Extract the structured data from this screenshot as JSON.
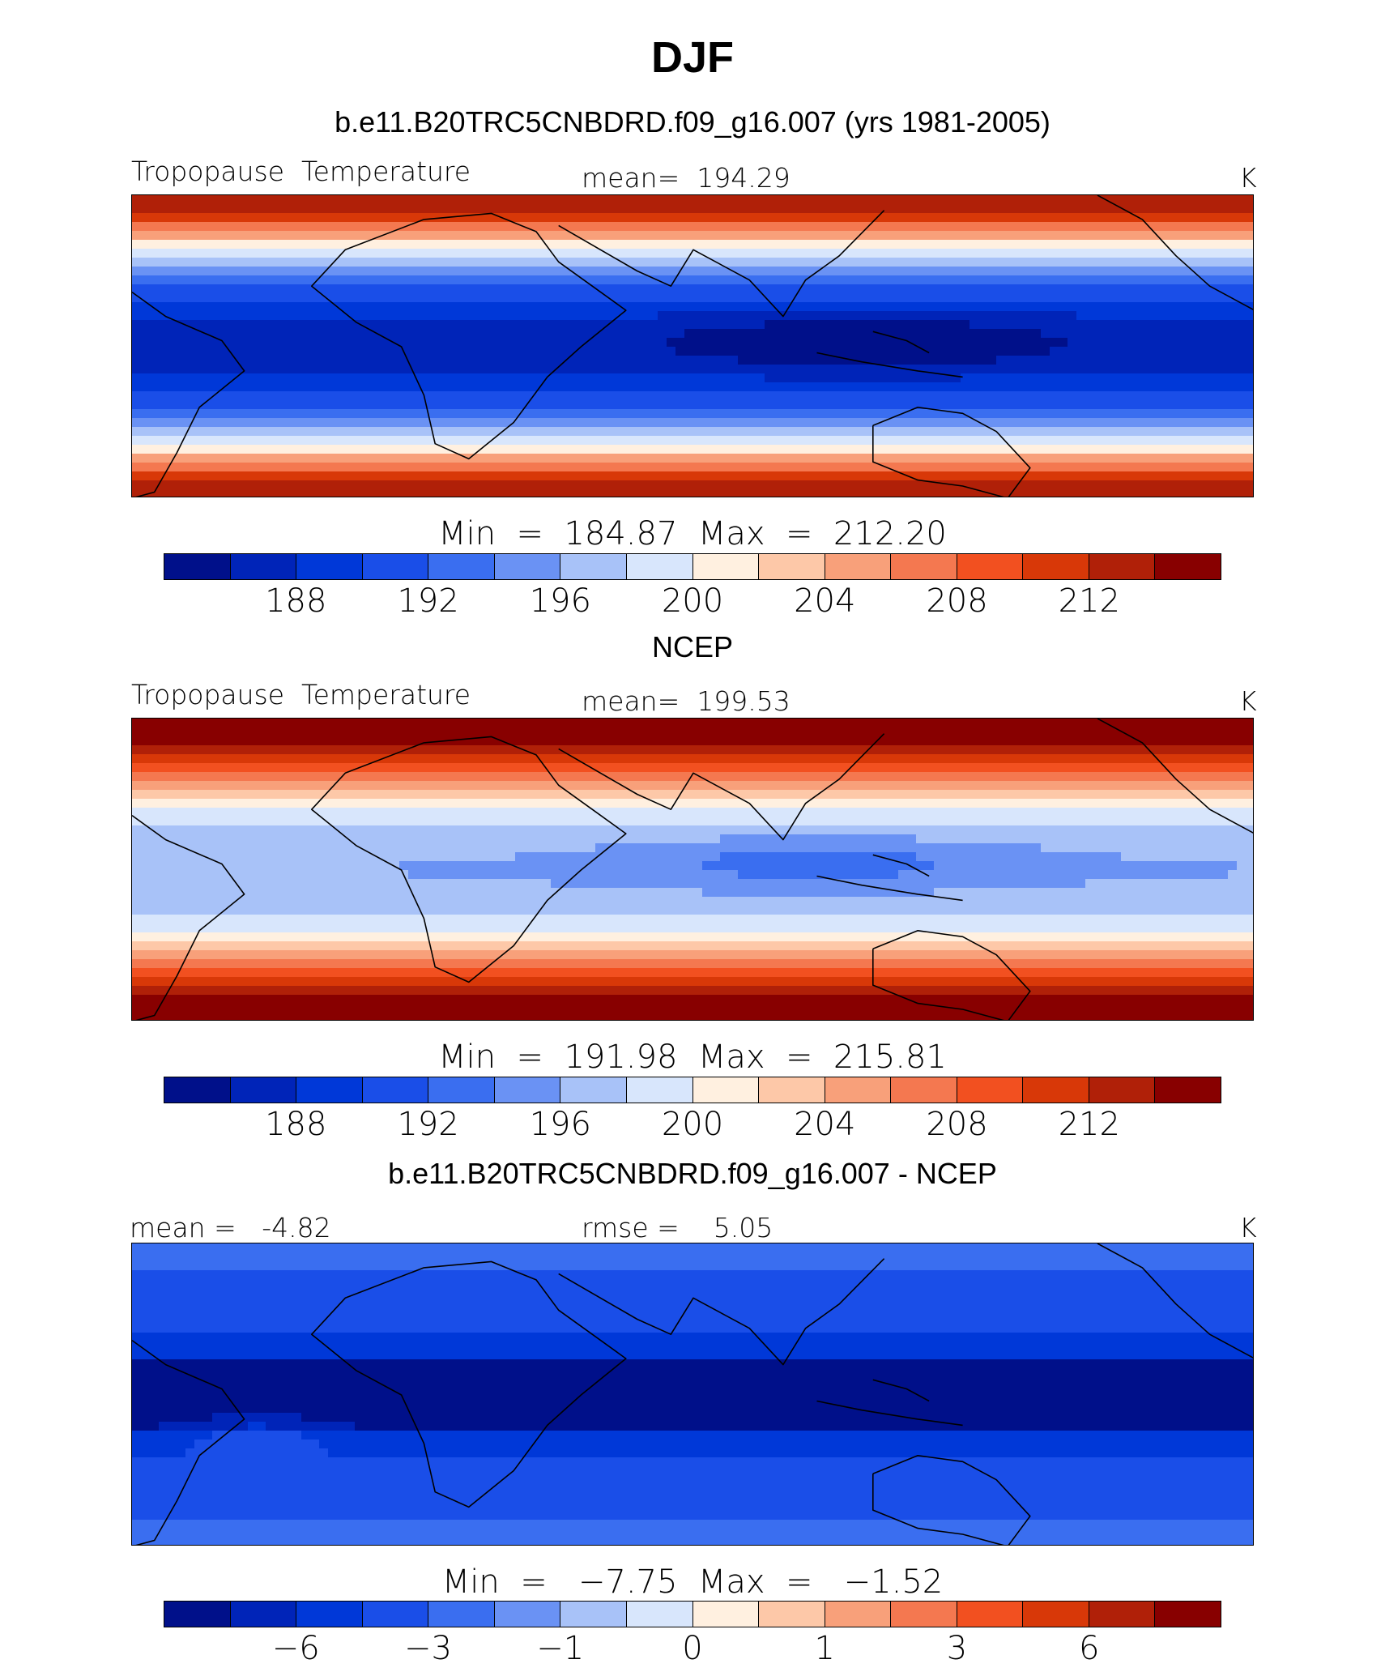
{
  "title": "DJF",
  "colors": [
    "#00108a",
    "#0024b8",
    "#0038d8",
    "#1a4ee8",
    "#3a6ef0",
    "#6a92f4",
    "#a8c2f8",
    "#d8e6fc",
    "#fff0e0",
    "#fdc8a8",
    "#f8a07a",
    "#f47850",
    "#f25020",
    "#d83808",
    "#b02008",
    "#880000"
  ],
  "panels": [
    {
      "name": "model",
      "subtitle": "b.e11.B20TRC5CNBDRD.f09_g16.007 (yrs 1981-2005)",
      "left_label": "Tropopause  Temperature",
      "center_label": "mean=  194.29",
      "units": "K",
      "minmax": "Min  =  184.87  Max  =  212.20",
      "ticks": [
        "188",
        "192",
        "196",
        "200",
        "204",
        "208",
        "212"
      ],
      "field": "model"
    },
    {
      "name": "obs",
      "subtitle": "NCEP",
      "left_label": "Tropopause  Temperature",
      "center_label": "mean=  199.53",
      "units": "K",
      "minmax": "Min  =  191.98  Max  =  215.81",
      "ticks": [
        "188",
        "192",
        "196",
        "200",
        "204",
        "208",
        "212"
      ],
      "field": "obs"
    },
    {
      "name": "diff",
      "subtitle": "b.e11.B20TRC5CNBDRD.f09_g16.007 - NCEP",
      "left_label": "mean =   -4.82",
      "center_label": "rmse =    5.05",
      "units": "K",
      "minmax": "Min  =   −7.75  Max  =   −1.52",
      "ticks": [
        "−6",
        "−3",
        "−1",
        "0",
        "1",
        "3",
        "6"
      ],
      "field": "diff"
    }
  ]
}
